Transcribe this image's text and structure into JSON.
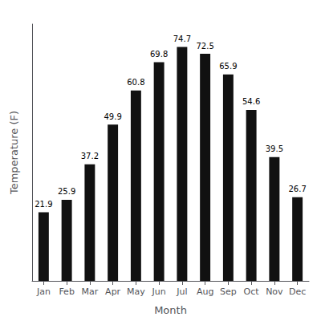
{
  "chart_data": {
    "type": "bar",
    "categories": [
      "Jan",
      "Feb",
      "Mar",
      "Apr",
      "May",
      "Jun",
      "Jul",
      "Aug",
      "Sep",
      "Oct",
      "Nov",
      "Dec"
    ],
    "values": [
      21.9,
      25.9,
      37.2,
      49.9,
      60.8,
      69.8,
      74.7,
      72.5,
      65.9,
      54.6,
      39.5,
      26.7
    ],
    "color": "#111111",
    "xlabel": "Month",
    "ylabel": "Temperature (F)",
    "ylim": [
      0,
      82
    ],
    "yticks": [],
    "grid": false,
    "data_labels": true,
    "tick_labels": "x"
  }
}
